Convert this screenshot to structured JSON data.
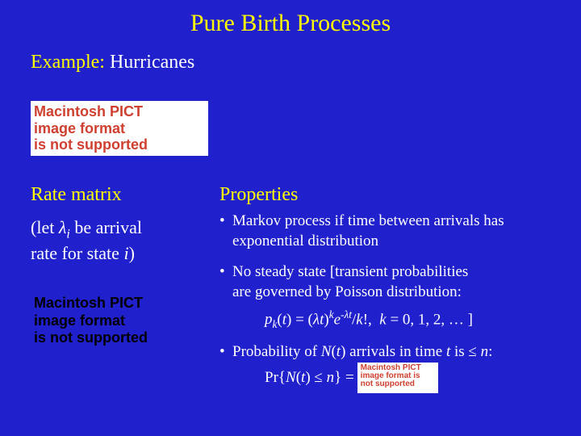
{
  "title": "Pure Birth Processes",
  "example": {
    "label": "Example:",
    "text": " Hurricanes"
  },
  "pict": {
    "l1": "Macintosh PICT",
    "l2": "image format",
    "l3": "is not supported"
  },
  "rate": {
    "heading": "Rate matrix",
    "sub_pre": "(let ",
    "lambda": "λ",
    "sub_i": "i",
    "sub_mid": " be arrival",
    "sub_line2": "rate for state ",
    "state_i": "i",
    "sub_post": ")"
  },
  "props": {
    "heading": "Properties",
    "b1": "Markov process if time between arrivals has exponential distribution",
    "b2a": "No steady state [transient probabilities",
    "b2b": "are governed by Poisson distribution:",
    "formula": "pₖ(t) = (λt)ᵏe⁻λt/k!,  k = 0, 1, 2, … ]",
    "b3_pre": "Probability of ",
    "b3_N": "N",
    "b3_paren_t": "(t)",
    "b3_mid": " arrivals in time ",
    "b3_t": "t",
    "b3_post": " is ≤ ",
    "b3_n": "n",
    "b3_colon": ":",
    "pr_pre": "Pr{",
    "pr_N": "N",
    "pr_t": "(t)",
    "pr_le": " ≤ ",
    "pr_n": "n",
    "pr_post": "} = "
  },
  "colors": {
    "background": "#2020cc",
    "heading": "#ffff00",
    "body": "#ffffff",
    "pict_text": "#d04030",
    "pict_bg": "#ffffff"
  }
}
